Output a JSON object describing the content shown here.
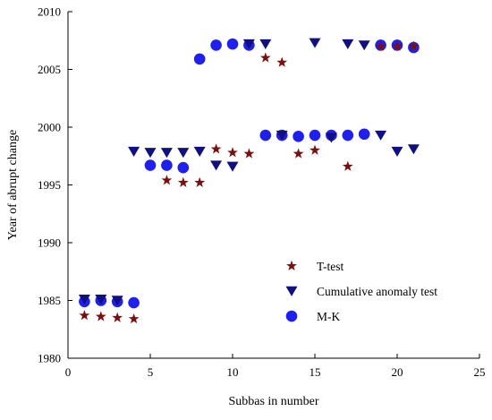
{
  "chart_data": {
    "type": "scatter",
    "title": "",
    "xlabel": "Subbas in number",
    "ylabel": "Year of abrupt change",
    "xlim": [
      0,
      25
    ],
    "ylim": [
      1980,
      2010
    ],
    "xticks": [
      0,
      5,
      10,
      15,
      20,
      25
    ],
    "yticks": [
      1980,
      1985,
      1990,
      1995,
      2000,
      2005,
      2010
    ],
    "grid": false,
    "legend_position": "bottom-right",
    "series": [
      {
        "name": "T-test",
        "marker": "star",
        "color": "#7a0f0f",
        "points": [
          [
            1,
            1983.7
          ],
          [
            2,
            1983.6
          ],
          [
            3,
            1983.5
          ],
          [
            4,
            1983.4
          ],
          [
            6,
            1995.4
          ],
          [
            7,
            1995.2
          ],
          [
            8,
            1995.2
          ],
          [
            9,
            1998.1
          ],
          [
            10,
            1997.8
          ],
          [
            11,
            1997.7
          ],
          [
            12,
            2006.0
          ],
          [
            13,
            2005.6
          ],
          [
            14,
            1997.7
          ],
          [
            15,
            1998.0
          ],
          [
            17,
            1996.6
          ],
          [
            19,
            2007.0
          ],
          [
            20,
            2007.0
          ],
          [
            21,
            2007.0
          ]
        ]
      },
      {
        "name": "Cumulative anomaly test",
        "marker": "triangle-down",
        "color": "#101080",
        "points": [
          [
            1,
            1985.1
          ],
          [
            2,
            1985.1
          ],
          [
            3,
            1985.0
          ],
          [
            4,
            1997.9
          ],
          [
            5,
            1997.8
          ],
          [
            6,
            1997.8
          ],
          [
            7,
            1997.8
          ],
          [
            8,
            1997.9
          ],
          [
            9,
            1996.7
          ],
          [
            10,
            1996.6
          ],
          [
            11,
            2007.2
          ],
          [
            12,
            2007.2
          ],
          [
            13,
            1999.3
          ],
          [
            15,
            2007.3
          ],
          [
            16,
            1999.1
          ],
          [
            17,
            2007.2
          ],
          [
            18,
            2007.1
          ],
          [
            19,
            1999.3
          ],
          [
            20,
            1997.9
          ],
          [
            21,
            1998.1
          ]
        ]
      },
      {
        "name": "M-K",
        "marker": "circle",
        "color": "#1f1ff0",
        "points": [
          [
            1,
            1984.9
          ],
          [
            2,
            1985.0
          ],
          [
            3,
            1984.9
          ],
          [
            4,
            1984.8
          ],
          [
            5,
            1996.7
          ],
          [
            6,
            1996.7
          ],
          [
            7,
            1996.5
          ],
          [
            8,
            2005.9
          ],
          [
            9,
            2007.1
          ],
          [
            10,
            2007.2
          ],
          [
            11,
            2007.1
          ],
          [
            12,
            1999.3
          ],
          [
            13,
            1999.3
          ],
          [
            14,
            1999.2
          ],
          [
            15,
            1999.3
          ],
          [
            16,
            1999.3
          ],
          [
            17,
            1999.3
          ],
          [
            18,
            1999.4
          ],
          [
            19,
            2007.1
          ],
          [
            20,
            2007.1
          ],
          [
            21,
            2006.9
          ]
        ]
      }
    ]
  }
}
